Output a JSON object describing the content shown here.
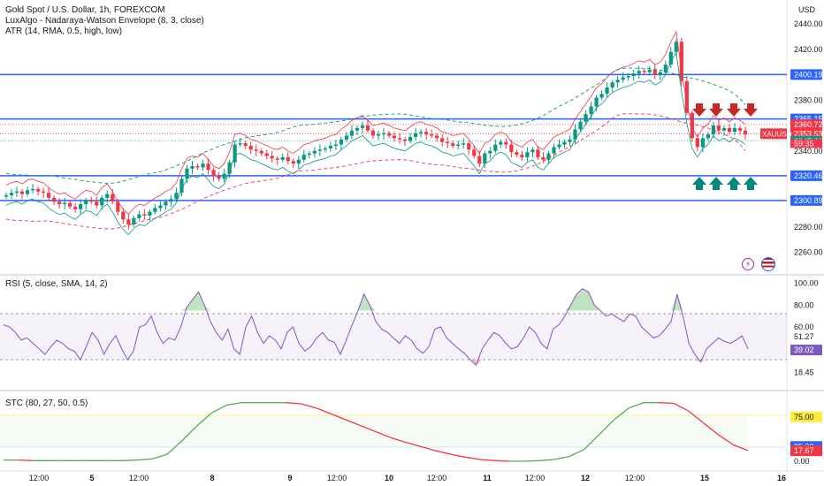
{
  "header": {
    "symbol_title": "Gold Spot / U.S. Dollar, 1h, FOREXCOM",
    "indicator_1": "LuxAlgo - Nadaraya-Watson Envelope (8, 3, close)",
    "indicator_2": "ATR (14, RMA, 0.5, high, low)",
    "currency": "USD"
  },
  "rsi_panel": {
    "label": "RSI (5, close, SMA, 14, 2)"
  },
  "stc_panel": {
    "label": "STC (80, 27, 50, 0.5)"
  },
  "colors": {
    "up": "#089981",
    "down": "#f23645",
    "level_line": "#2962ff",
    "rsi": "#7e57c2",
    "envelope_upper": "#f23645",
    "envelope_lower": "#089981",
    "stc_up": "#4caf50",
    "stc_down": "#f23645"
  },
  "price_axis": {
    "ticks": [
      "2440.00",
      "2420.00",
      "2400.00",
      "2380.00",
      "2360.00",
      "2340.00",
      "2320.00",
      "2300.00",
      "2280.00",
      "2260.00"
    ]
  },
  "price_tags": [
    {
      "text": "2400.19",
      "price": 2400.19,
      "color": "#2962ff"
    },
    {
      "text": "2365.15",
      "price": 2365.15,
      "color": "#2962ff"
    },
    {
      "text": "2360.72",
      "price": 2360.72,
      "color": "#f23645"
    },
    {
      "text": "2353.53",
      "price": 2353.53,
      "color": "#f23645"
    },
    {
      "text": "2347.64",
      "price": 2347.64,
      "color": "#089981"
    },
    {
      "text": "2320.46",
      "price": 2320.46,
      "color": "#2962ff"
    },
    {
      "text": "2300.89",
      "price": 2300.89,
      "color": "#2962ff"
    }
  ],
  "countdown": "59:35",
  "symbol_tag": "XAUUSD",
  "rsi_axis": {
    "ticks": [
      "100.00",
      "80.00",
      "60.00",
      "18.45"
    ],
    "tags": [
      {
        "text": "51.27",
        "value": 51.27,
        "color": "none"
      },
      {
        "text": "39.02",
        "value": 39.02,
        "color": "#7e57c2"
      }
    ]
  },
  "stc_axis": {
    "ticks": [
      "0.00"
    ],
    "tags": [
      {
        "text": "75.00",
        "value": 75,
        "color": "#ffeb3b"
      },
      {
        "text": "25.00",
        "value": 25,
        "color": "#2962ff"
      },
      {
        "text": "17.67",
        "value": 17.67,
        "color": "#f23645"
      }
    ]
  },
  "time_axis": [
    "12:00",
    "5",
    "12:00",
    "8",
    "9",
    "12:00",
    "10",
    "12:00",
    "11",
    "12:00",
    "12",
    "12:00",
    "15",
    "16"
  ],
  "chart_data": {
    "type": "candlestick",
    "title": "Gold Spot / U.S. Dollar, 1h, FOREXCOM",
    "horizontal_levels": [
      2400.19,
      2365.15,
      2320.46,
      2300.89
    ],
    "price_range": [
      2250,
      2445
    ],
    "close_series": [
      2305,
      2307,
      2308,
      2306,
      2309,
      2310,
      2308,
      2307,
      2303,
      2300,
      2298,
      2299,
      2296,
      2294,
      2298,
      2301,
      2300,
      2297,
      2303,
      2306,
      2300,
      2292,
      2286,
      2282,
      2287,
      2290,
      2289,
      2292,
      2295,
      2297,
      2300,
      2302,
      2307,
      2318,
      2326,
      2328,
      2327,
      2330,
      2325,
      2320,
      2318,
      2322,
      2331,
      2345,
      2346,
      2344,
      2341,
      2340,
      2338,
      2336,
      2334,
      2333,
      2335,
      2332,
      2330,
      2333,
      2337,
      2338,
      2340,
      2341,
      2342,
      2344,
      2345,
      2349,
      2352,
      2356,
      2358,
      2360,
      2356,
      2352,
      2353,
      2354,
      2352,
      2350,
      2349,
      2348,
      2351,
      2354,
      2355,
      2353,
      2352,
      2350,
      2347,
      2346,
      2344,
      2345,
      2346,
      2341,
      2336,
      2330,
      2338,
      2340,
      2345,
      2347,
      2345,
      2339,
      2337,
      2335,
      2339,
      2341,
      2335,
      2333,
      2338,
      2343,
      2345,
      2347,
      2349,
      2357,
      2363,
      2369,
      2375,
      2382,
      2385,
      2390,
      2394,
      2396,
      2398,
      2399,
      2401,
      2403,
      2402,
      2404,
      2400,
      2402,
      2408,
      2418,
      2426,
      2395,
      2370,
      2350,
      2343,
      2350,
      2353,
      2360,
      2356,
      2358,
      2355,
      2358,
      2356,
      2353
    ],
    "down_arrows": 4,
    "up_arrows": 4
  },
  "rsi_data": [
    62,
    60,
    55,
    48,
    50,
    45,
    40,
    35,
    42,
    48,
    45,
    40,
    38,
    30,
    42,
    55,
    48,
    35,
    45,
    52,
    40,
    30,
    38,
    60,
    62,
    70,
    55,
    45,
    50,
    48,
    60,
    78,
    85,
    92,
    80,
    65,
    55,
    48,
    58,
    40,
    35,
    60,
    70,
    55,
    45,
    52,
    48,
    40,
    55,
    60,
    45,
    38,
    42,
    50,
    55,
    48,
    46,
    35,
    48,
    62,
    75,
    90,
    80,
    65,
    58,
    55,
    50,
    45,
    52,
    48,
    40,
    36,
    42,
    58,
    60,
    50,
    45,
    40,
    36,
    30,
    25,
    40,
    48,
    55,
    52,
    45,
    40,
    42,
    50,
    60,
    55,
    45,
    40,
    58,
    62,
    70,
    80,
    90,
    95,
    92,
    80,
    75,
    70,
    72,
    68,
    65,
    72,
    70,
    60,
    55,
    50,
    52,
    58,
    65,
    90,
    70,
    45,
    35,
    28,
    40,
    45,
    50,
    47,
    45,
    48,
    52,
    40
  ],
  "stc_data": [
    2,
    2,
    1,
    1,
    1,
    1,
    1,
    1,
    1,
    2,
    4,
    12,
    35,
    60,
    82,
    95,
    99,
    99,
    99,
    99,
    97,
    90,
    80,
    70,
    60,
    50,
    40,
    32,
    25,
    18,
    12,
    7,
    3,
    1,
    0,
    0,
    1,
    3,
    8,
    20,
    45,
    70,
    90,
    99,
    99,
    98,
    85,
    65,
    45,
    28,
    18
  ]
}
